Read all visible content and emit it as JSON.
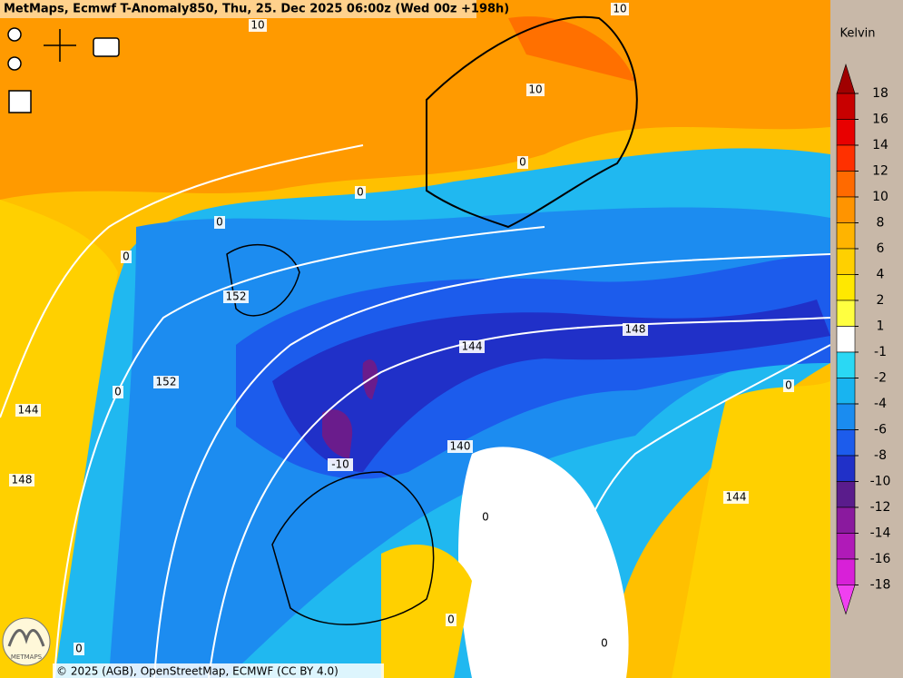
{
  "header": {
    "title": "MetMaps, Ecmwf T-Anomaly850, Thu, 25. Dec 2025 06:00z (Wed 00z +198h)"
  },
  "legend": {
    "unit": "Kelvin",
    "labels": [
      "18",
      "16",
      "14",
      "12",
      "10",
      "8",
      "6",
      "4",
      "2",
      "1",
      "-1",
      "-2",
      "-4",
      "-6",
      "-8",
      "-10",
      "-12",
      "-14",
      "-16",
      "-18"
    ],
    "colors": [
      "#a00000",
      "#c80000",
      "#e80000",
      "#ff3000",
      "#ff6a00",
      "#ff9400",
      "#ffb400",
      "#ffd000",
      "#ffe800",
      "#ffff40",
      "#ffffff",
      "#2ad8f4",
      "#18b4f0",
      "#1a8cf0",
      "#1c5cec",
      "#2030c8",
      "#5a1c8c",
      "#8a1a9e",
      "#b01ab8",
      "#d820d8",
      "#f040f0"
    ]
  },
  "map": {
    "contour_labels": [
      "10",
      "10",
      "10",
      "0",
      "0",
      "0",
      "0",
      "152",
      "152",
      "144",
      "148",
      "144",
      "148",
      "140",
      "-10",
      "144",
      "0",
      "0",
      "0",
      "0",
      "0",
      "0"
    ]
  },
  "logo": {
    "text": "METMAPS"
  },
  "footer": {
    "attribution": "© 2025 (AGB), OpenStreetMap, ECMWF (CC BY 4.0)"
  }
}
